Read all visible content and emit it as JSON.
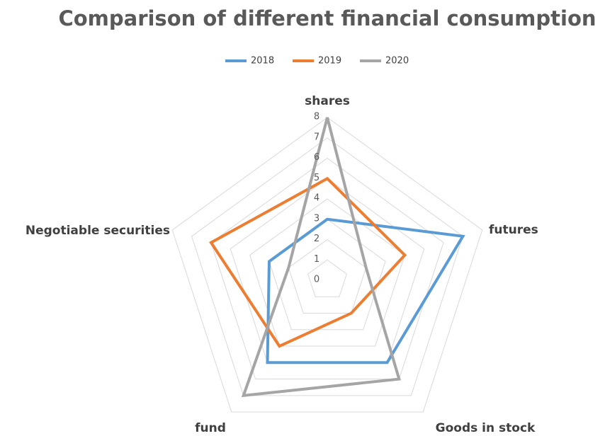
{
  "chart_data": {
    "type": "radar",
    "title": "Comparison of different financial consumption",
    "categories": [
      "shares",
      "futures",
      "Goods in stock",
      "fund",
      "Negotiable securities"
    ],
    "series": [
      {
        "name": "2018",
        "color": "#5b9bd5",
        "values": [
          3,
          7,
          5,
          5,
          3
        ]
      },
      {
        "name": "2019",
        "color": "#ed7d31",
        "values": [
          5,
          4,
          2,
          4,
          6
        ]
      },
      {
        "name": "2020",
        "color": "#a5a5a5",
        "values": [
          8,
          2,
          6,
          7,
          2
        ]
      }
    ],
    "ylim": [
      0,
      8
    ],
    "yticks": [
      0,
      1,
      2,
      3,
      4,
      5,
      6,
      7,
      8
    ],
    "grid": true,
    "legend": "top"
  }
}
